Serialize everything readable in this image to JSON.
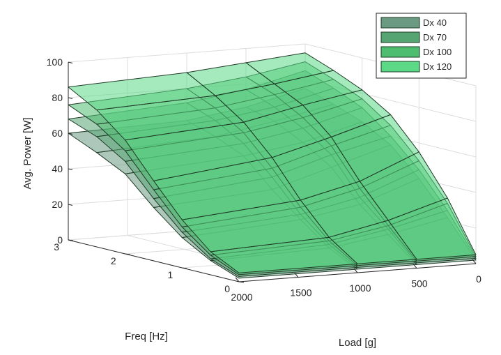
{
  "chart_data": {
    "type": "surface3d",
    "title": "",
    "zlabel": "Avg. Power [W]",
    "ylabel": "Freq [Hz]",
    "xlabel": "Load [g]",
    "zlim": [
      0,
      100
    ],
    "ylim": [
      0,
      3
    ],
    "xlim": [
      0,
      2000
    ],
    "z_ticks": [
      "0",
      "20",
      "40",
      "60",
      "80",
      "100"
    ],
    "y_ticks": [
      "0",
      "1",
      "2",
      "3"
    ],
    "x_ticks": [
      "0",
      "500",
      "1000",
      "1500",
      "2000"
    ],
    "grid": true,
    "legend_position": "top-right",
    "freq_values": [
      0,
      0.5,
      1,
      1.5,
      2,
      2.5,
      3
    ],
    "load_values": [
      0,
      500,
      1000,
      2000
    ],
    "series": [
      {
        "name": "Dx 40",
        "color": "#6a9a82",
        "z": [
          [
            2,
            2,
            2,
            2
          ],
          [
            22,
            15,
            10,
            8
          ],
          [
            40,
            28,
            22,
            17
          ],
          [
            55,
            45,
            35,
            30
          ],
          [
            64,
            55,
            50,
            45
          ],
          [
            70,
            63,
            57,
            53
          ],
          [
            75,
            67,
            62,
            60
          ]
        ]
      },
      {
        "name": "Dx 70",
        "color": "#55a472",
        "z": [
          [
            3,
            3,
            3,
            3
          ],
          [
            26,
            18,
            12,
            9
          ],
          [
            45,
            32,
            25,
            20
          ],
          [
            60,
            52,
            42,
            35
          ],
          [
            72,
            63,
            57,
            52
          ],
          [
            79,
            71,
            66,
            62
          ],
          [
            85,
            77,
            72,
            68
          ]
        ]
      },
      {
        "name": "Dx 100",
        "color": "#4ebd70",
        "z": [
          [
            4,
            4,
            4,
            4
          ],
          [
            30,
            20,
            14,
            11
          ],
          [
            50,
            37,
            29,
            23
          ],
          [
            66,
            57,
            47,
            40
          ],
          [
            77,
            69,
            63,
            58
          ],
          [
            84,
            78,
            73,
            69
          ],
          [
            90,
            84,
            80,
            76
          ]
        ]
      },
      {
        "name": "Dx 120",
        "color": "#5bd986",
        "z": [
          [
            5,
            5,
            5,
            5
          ],
          [
            33,
            23,
            16,
            13
          ],
          [
            55,
            41,
            33,
            27
          ],
          [
            72,
            62,
            53,
            45
          ],
          [
            82,
            76,
            69,
            64
          ],
          [
            89,
            84,
            80,
            77
          ],
          [
            95,
            92,
            89,
            86
          ]
        ]
      }
    ]
  }
}
